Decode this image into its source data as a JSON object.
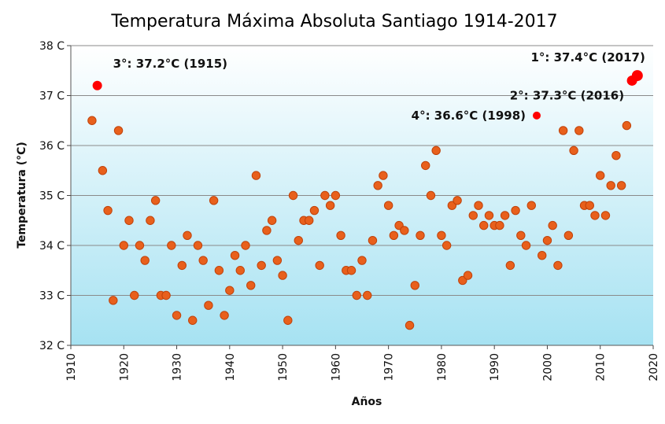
{
  "chart_data": {
    "type": "scatter",
    "title": "Temperatura Máxima Absoluta Santiago 1914-2017",
    "xlabel": "Años",
    "ylabel": "Temperatura (°C)",
    "xlim": [
      1910,
      2020
    ],
    "ylim": [
      32,
      38
    ],
    "x_ticks": [
      "1910",
      "1920",
      "1930",
      "1940",
      "1950",
      "1960",
      "1970",
      "1980",
      "1990",
      "2000",
      "2010",
      "2020"
    ],
    "y_ticks": [
      "32 C",
      "33 C",
      "34 C",
      "35 C",
      "36 C",
      "37 C",
      "38 C"
    ],
    "grid": true,
    "colors": {
      "marker_fill": "#e8601c",
      "marker_edge": "#c0420a",
      "highlight": "#ff0000",
      "plot_bg_top": "#ffffff",
      "plot_bg_bottom": "#a6e2f2",
      "grid": "#8a8a8a"
    },
    "series": [
      {
        "x": [
          1914,
          1916,
          1917,
          1918,
          1919,
          1920,
          1921,
          1922,
          1923,
          1924,
          1925,
          1926,
          1927,
          1928,
          1929,
          1930,
          1931,
          1932,
          1933,
          1934,
          1935,
          1936,
          1937,
          1938,
          1939,
          1940,
          1941,
          1942,
          1943,
          1944,
          1945,
          1946,
          1947,
          1948,
          1949,
          1950,
          1951,
          1952,
          1953,
          1954,
          1955,
          1956,
          1957,
          1958,
          1959,
          1960,
          1961,
          1962,
          1963,
          1964,
          1965,
          1966,
          1967,
          1968,
          1969,
          1970,
          1971,
          1972,
          1973,
          1974,
          1975,
          1976,
          1977,
          1978,
          1979,
          1980,
          1981,
          1982,
          1983,
          1984,
          1985,
          1986,
          1987,
          1988,
          1989,
          1990,
          1991,
          1992,
          1993,
          1994,
          1995,
          1996,
          1997,
          1999,
          2000,
          2001,
          2002,
          2003,
          2004,
          2005,
          2006,
          2007,
          2008,
          2009,
          2010,
          2011,
          2012,
          2013,
          2014,
          2015
        ],
        "y": [
          36.5,
          35.5,
          34.7,
          32.9,
          36.3,
          34.0,
          34.5,
          33.0,
          34.0,
          33.7,
          34.5,
          34.9,
          33.0,
          33.0,
          34.0,
          32.6,
          33.6,
          34.2,
          32.5,
          34.0,
          33.7,
          32.8,
          34.9,
          33.5,
          32.6,
          33.1,
          33.8,
          33.5,
          34.0,
          33.2,
          35.4,
          33.6,
          34.3,
          34.5,
          33.7,
          33.4,
          32.5,
          35.0,
          34.1,
          34.5,
          34.5,
          34.7,
          33.6,
          35.0,
          34.8,
          35.0,
          34.2,
          33.5,
          33.5,
          33.0,
          33.7,
          33.0,
          34.1,
          35.2,
          35.4,
          34.8,
          34.2,
          34.4,
          34.3,
          32.4,
          33.2,
          34.2,
          35.6,
          35.0,
          35.9,
          34.2,
          34.0,
          34.8,
          34.9,
          33.3,
          33.4,
          34.6,
          34.8,
          34.4,
          34.6,
          34.4,
          34.4,
          34.6,
          33.6,
          34.7,
          34.2,
          34.0,
          34.8,
          33.8,
          34.1,
          34.4,
          33.6,
          36.3,
          34.2,
          35.9,
          36.3,
          34.8,
          34.8,
          34.6,
          35.4,
          34.6,
          35.2,
          35.8,
          35.2,
          36.4
        ]
      }
    ],
    "highlights": [
      {
        "rank": 1,
        "x": 2017,
        "y": 37.4,
        "label": "1°: 37.4°C (2017)"
      },
      {
        "rank": 2,
        "x": 2016,
        "y": 37.3,
        "label": "2°: 37.3°C (2016)"
      },
      {
        "rank": 3,
        "x": 1915,
        "y": 37.2,
        "label": "3°: 37.2°C (1915)"
      },
      {
        "rank": 4,
        "x": 1998,
        "y": 36.6,
        "label": "4°: 36.6°C (1998)"
      }
    ]
  }
}
